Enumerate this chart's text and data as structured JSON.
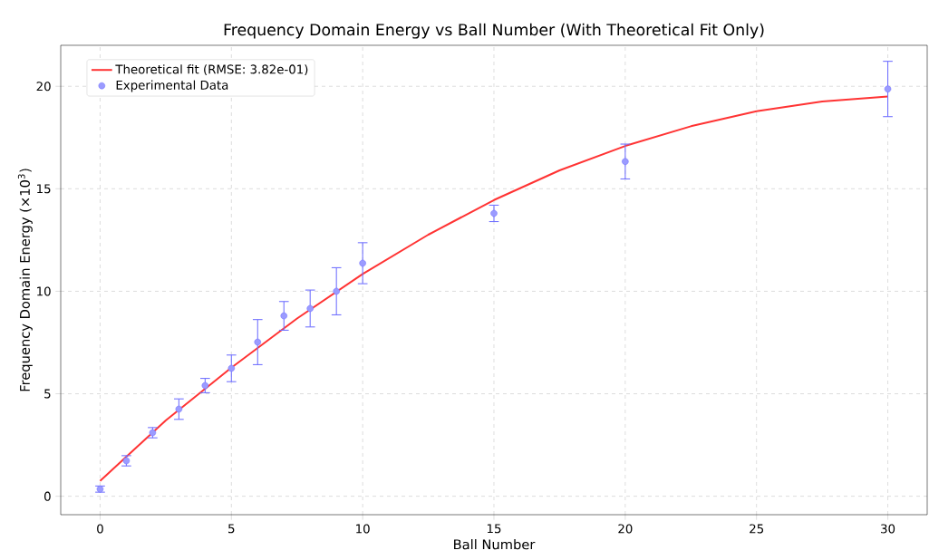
{
  "chart_data": {
    "type": "scatter",
    "title": "Frequency Domain Energy vs Ball Number (With Theoretical Fit Only)",
    "xlabel": "Ball Number",
    "ylabel": "Frequency Domain Energy (×10$^{3}$)",
    "series": [
      {
        "name": "Theoretical fit (RMSE: 3.82e-01)",
        "type": "line",
        "color": "#ff3333",
        "marker": "none",
        "x": [
          0,
          2.5,
          5,
          7.5,
          10,
          12.5,
          15,
          17.5,
          20,
          22.5,
          25,
          27.5,
          30
        ],
        "values": [
          0.75,
          3.7,
          6.27,
          8.67,
          10.84,
          12.76,
          14.45,
          15.9,
          17.09,
          18.05,
          18.78,
          19.26,
          19.5
        ]
      },
      {
        "name": "Experimental Data",
        "color": "#7070ff",
        "marker": "circle",
        "x": [
          0,
          1,
          2,
          3,
          4,
          5,
          6,
          7,
          8,
          9,
          10,
          15,
          20,
          30
        ],
        "values": [
          0.35,
          1.73,
          3.1,
          4.25,
          5.4,
          6.24,
          7.52,
          8.8,
          9.16,
          10.0,
          11.37,
          13.8,
          16.33,
          19.87
        ],
        "errors": [
          0.15,
          0.25,
          0.25,
          0.5,
          0.35,
          0.65,
          1.1,
          0.7,
          0.9,
          1.15,
          1.0,
          0.4,
          0.85,
          1.35
        ]
      }
    ],
    "xlim": [
      -1.5,
      31.5
    ],
    "ylim": [
      -0.9,
      22.0
    ],
    "xticks": [
      0,
      5,
      10,
      15,
      20,
      25,
      30
    ],
    "yticks": [
      0,
      5,
      10,
      15,
      20
    ],
    "grid": true,
    "legend": "top left"
  }
}
